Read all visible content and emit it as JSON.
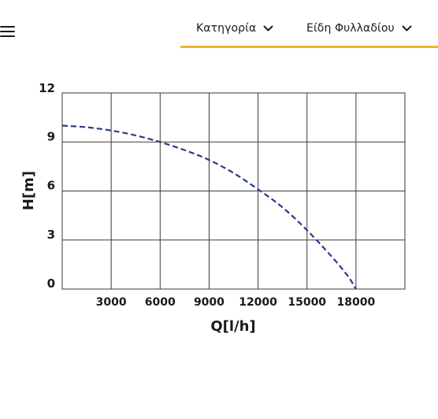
{
  "nav": {
    "items": [
      {
        "label": "Κατηγορία"
      },
      {
        "label": "Είδη Φυλλαδίου"
      }
    ],
    "accent_color": "#f2b52b"
  },
  "icons": {
    "menu": "hamburger-menu-icon",
    "chevron": "chevron-down-icon"
  },
  "chart_data": {
    "type": "line",
    "xlabel": "Q[l/h]",
    "ylabel": "H[m]",
    "xlim": [
      0,
      21000
    ],
    "ylim": [
      0,
      12
    ],
    "x_ticks": [
      3000,
      6000,
      9000,
      12000,
      15000,
      18000
    ],
    "x_tick_labels": [
      "3000",
      "6000",
      "9000",
      "12000",
      "15000",
      "18000"
    ],
    "y_ticks": [
      0,
      3,
      6,
      9,
      12
    ],
    "y_tick_labels": [
      "0",
      "3",
      "6",
      "9",
      "12"
    ],
    "grid": true,
    "line_style": "dashed",
    "line_color": "#2b3a8c",
    "series": [
      {
        "x": [
          0,
          1500,
          3000,
          4500,
          6000,
          7500,
          9000,
          10500,
          12000,
          13500,
          15000,
          16500,
          17500,
          18000
        ],
        "y": [
          10.0,
          9.9,
          9.7,
          9.4,
          9.0,
          8.5,
          7.9,
          7.1,
          6.1,
          5.0,
          3.6,
          2.0,
          0.8,
          0.0
        ]
      }
    ]
  }
}
